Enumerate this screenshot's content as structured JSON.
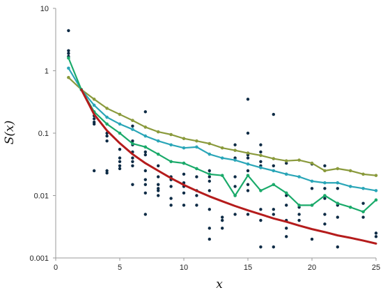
{
  "chart_data": {
    "type": "scatter",
    "title": "",
    "xlabel": "x",
    "ylabel": "S(x)",
    "xlim": [
      0,
      25
    ],
    "ylim": [
      0.001,
      10
    ],
    "yscale": "log",
    "grid": false,
    "x_ticks": [
      "0",
      "5",
      "10",
      "15",
      "20",
      "25"
    ],
    "y_ticks": [
      "0.001",
      "0.01",
      "0.1",
      "1",
      "10"
    ],
    "colors": {
      "points": "#0d2b45",
      "olive_line": "#8a9a3c",
      "teal_line": "#2aa6b8",
      "green_line": "#1aaa6a",
      "red_curve": "#b51c1c",
      "axis": "#9a9a9a"
    },
    "scatter_points": [
      [
        1,
        4.4
      ],
      [
        1,
        2.1
      ],
      [
        1,
        1.9
      ],
      [
        1,
        1.7
      ],
      [
        3,
        0.21
      ],
      [
        3,
        0.19
      ],
      [
        3,
        0.17
      ],
      [
        3,
        0.15
      ],
      [
        3,
        0.14
      ],
      [
        3,
        0.025
      ],
      [
        4,
        0.1
      ],
      [
        4,
        0.09
      ],
      [
        4,
        0.075
      ],
      [
        4,
        0.025
      ],
      [
        4,
        0.023
      ],
      [
        5,
        0.055
      ],
      [
        5,
        0.04
      ],
      [
        5,
        0.035
      ],
      [
        5,
        0.03
      ],
      [
        5,
        0.027
      ],
      [
        6,
        0.13
      ],
      [
        6,
        0.075
      ],
      [
        6,
        0.065
      ],
      [
        6,
        0.05
      ],
      [
        6,
        0.04
      ],
      [
        6,
        0.035
      ],
      [
        6,
        0.03
      ],
      [
        6,
        0.015
      ],
      [
        7,
        0.22
      ],
      [
        7,
        0.05
      ],
      [
        7,
        0.045
      ],
      [
        7,
        0.025
      ],
      [
        7,
        0.018
      ],
      [
        7,
        0.015
      ],
      [
        7,
        0.011
      ],
      [
        7,
        0.005
      ],
      [
        8,
        0.03
      ],
      [
        8,
        0.02
      ],
      [
        8,
        0.015
      ],
      [
        8,
        0.013
      ],
      [
        8,
        0.012
      ],
      [
        8,
        0.01
      ],
      [
        9,
        0.02
      ],
      [
        9,
        0.018
      ],
      [
        9,
        0.014
      ],
      [
        9,
        0.009
      ],
      [
        9,
        0.007
      ],
      [
        10,
        0.033
      ],
      [
        10,
        0.022
      ],
      [
        10,
        0.016
      ],
      [
        10,
        0.014
      ],
      [
        10,
        0.011
      ],
      [
        10,
        0.007
      ],
      [
        11,
        0.02
      ],
      [
        11,
        0.012
      ],
      [
        11,
        0.01
      ],
      [
        11,
        0.007
      ],
      [
        12,
        0.025
      ],
      [
        12,
        0.02
      ],
      [
        12,
        0.017
      ],
      [
        12,
        0.012
      ],
      [
        12,
        0.006
      ],
      [
        12,
        0.003
      ],
      [
        12,
        0.002
      ],
      [
        13,
        0.004
      ],
      [
        13,
        0.0045
      ],
      [
        13,
        0.003
      ],
      [
        14,
        0.065
      ],
      [
        14,
        0.04
      ],
      [
        14,
        0.02
      ],
      [
        14,
        0.014
      ],
      [
        14,
        0.01
      ],
      [
        14,
        0.005
      ],
      [
        15,
        0.35
      ],
      [
        15,
        0.1
      ],
      [
        15,
        0.045
      ],
      [
        15,
        0.04
      ],
      [
        15,
        0.025
      ],
      [
        15,
        0.015
      ],
      [
        15,
        0.012
      ],
      [
        15,
        0.005
      ],
      [
        16,
        0.065
      ],
      [
        16,
        0.05
      ],
      [
        16,
        0.035
      ],
      [
        16,
        0.03
      ],
      [
        16,
        0.006
      ],
      [
        16,
        0.004
      ],
      [
        16,
        0.0015
      ],
      [
        17,
        0.2
      ],
      [
        17,
        0.03
      ],
      [
        17,
        0.006
      ],
      [
        17,
        0.005
      ],
      [
        17,
        0.0015
      ],
      [
        18,
        0.033
      ],
      [
        18,
        0.022
      ],
      [
        18,
        0.01
      ],
      [
        18,
        0.007
      ],
      [
        18,
        0.004
      ],
      [
        18,
        0.003
      ],
      [
        18,
        0.0022
      ],
      [
        19,
        0.0065
      ],
      [
        19,
        0.005
      ],
      [
        19,
        0.004
      ],
      [
        20,
        0.032
      ],
      [
        20,
        0.013
      ],
      [
        20,
        0.007
      ],
      [
        20,
        0.002
      ],
      [
        21,
        0.03
      ],
      [
        21,
        0.013
      ],
      [
        21,
        0.009
      ],
      [
        21,
        0.005
      ],
      [
        21,
        0.0035
      ],
      [
        22,
        0.013
      ],
      [
        22,
        0.007
      ],
      [
        22,
        0.0045
      ],
      [
        22,
        0.0015
      ],
      [
        24,
        0.0075
      ],
      [
        24,
        0.0045
      ],
      [
        25,
        0.0025
      ],
      [
        25,
        0.0022
      ]
    ],
    "series": [
      {
        "color_key": "olive_line",
        "kind": "line-markers",
        "x": [
          1,
          2,
          3,
          4,
          5,
          6,
          7,
          8,
          9,
          10,
          11,
          12,
          13,
          14,
          15,
          16,
          17,
          18,
          19,
          20,
          21,
          22,
          23,
          24,
          25
        ],
        "y": [
          0.78,
          0.5,
          0.35,
          0.25,
          0.2,
          0.16,
          0.125,
          0.105,
          0.095,
          0.082,
          0.075,
          0.068,
          0.058,
          0.053,
          0.048,
          0.044,
          0.039,
          0.036,
          0.037,
          0.033,
          0.025,
          0.027,
          0.025,
          0.022,
          0.021
        ]
      },
      {
        "color_key": "teal_line",
        "kind": "line-markers",
        "x": [
          1,
          2,
          3,
          4,
          5,
          6,
          7,
          8,
          9,
          10,
          11,
          12,
          13,
          14,
          15,
          16,
          17,
          18,
          19,
          20,
          21,
          22,
          23,
          24,
          25
        ],
        "y": [
          1.1,
          0.5,
          0.28,
          0.18,
          0.14,
          0.115,
          0.09,
          0.075,
          0.065,
          0.058,
          0.06,
          0.046,
          0.04,
          0.037,
          0.032,
          0.028,
          0.025,
          0.022,
          0.02,
          0.017,
          0.016,
          0.016,
          0.014,
          0.013,
          0.012
        ]
      },
      {
        "color_key": "green_line",
        "kind": "line-markers",
        "x": [
          1,
          2,
          3,
          4,
          5,
          6,
          7,
          8,
          9,
          10,
          11,
          12,
          13,
          14,
          15,
          16,
          17,
          18,
          19,
          20,
          21,
          22,
          23,
          24,
          25
        ],
        "y": [
          1.6,
          0.5,
          0.22,
          0.14,
          0.1,
          0.068,
          0.06,
          0.046,
          0.035,
          0.033,
          0.027,
          0.022,
          0.021,
          0.01,
          0.021,
          0.012,
          0.015,
          0.011,
          0.007,
          0.007,
          0.01,
          0.0075,
          0.0065,
          0.0055,
          0.0085
        ]
      },
      {
        "color_key": "red_curve",
        "kind": "curve",
        "x": [
          2,
          3,
          4,
          5,
          6,
          7,
          8,
          9,
          10,
          11,
          12,
          13,
          14,
          15,
          16,
          17,
          18,
          19,
          20,
          21,
          22,
          23,
          24,
          25
        ],
        "y": [
          0.5,
          0.2,
          0.11,
          0.069,
          0.046,
          0.033,
          0.025,
          0.019,
          0.0148,
          0.0119,
          0.0097,
          0.0081,
          0.0068,
          0.0058,
          0.005,
          0.0043,
          0.0038,
          0.0033,
          0.0029,
          0.0026,
          0.0023,
          0.0021,
          0.0019,
          0.0017
        ]
      }
    ]
  }
}
